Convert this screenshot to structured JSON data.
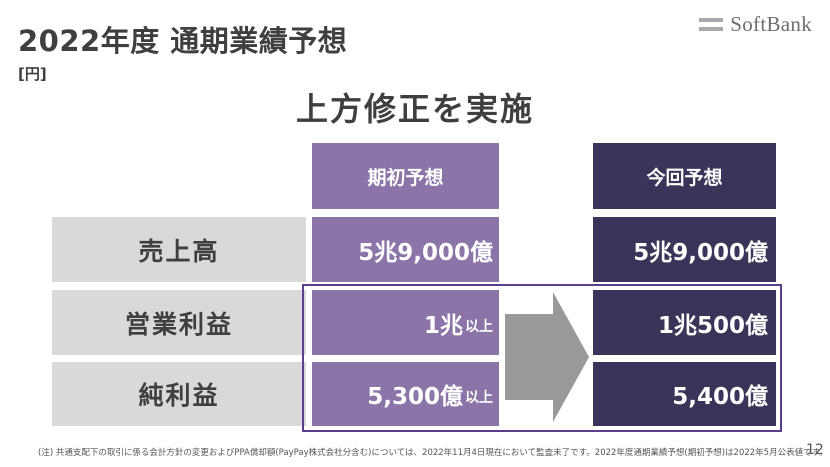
{
  "header": {
    "title": "2022年度 通期業績予想",
    "unit": "[円]",
    "logo_text": "SoftBank"
  },
  "subtitle": "上方修正を実施",
  "columns": {
    "initial": "期初予想",
    "current": "今回予想"
  },
  "rows": [
    {
      "label": "売上高",
      "initial": "5兆9,000億",
      "initial_suffix": "",
      "current": "5兆9,000億"
    },
    {
      "label": "営業利益",
      "initial": "1兆",
      "initial_suffix": "以上",
      "current": "1兆500億"
    },
    {
      "label": "純利益",
      "initial": "5,300億",
      "initial_suffix": "以上",
      "current": "5,400億"
    }
  ],
  "footnote": "(注) 共通支配下の取引に係る会計方針の変更およびPPA償却額(PayPay株式会社分含む)については、2022年11月4日現在において監査未了です。2022年度通期業績予想(期初予想)は2022年5月公表値です。",
  "page_number": "12",
  "colors": {
    "initial_fill": "#8b74a8",
    "current_fill": "#3a3458",
    "label_fill": "#d9d9d9",
    "highlight_border": "#5b3f8e",
    "arrow_fill": "#999999"
  }
}
